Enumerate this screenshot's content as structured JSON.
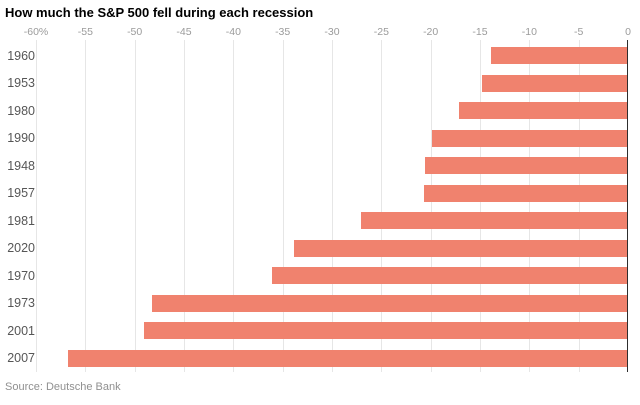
{
  "source": "Source: Deutsche Bank",
  "colors": {
    "bar": "#f0826e",
    "zero_axis": "#2e2e2e",
    "gridline": "#e6e6e6",
    "tick_label": "#9b9b9b",
    "year_label": "#565656",
    "title": "#000000",
    "source_text": "#909090",
    "background": "#ffffff"
  },
  "chart_data": {
    "type": "bar",
    "orientation": "horizontal",
    "title": "How much the S&P 500 fell during each recession",
    "categories": [
      "1960",
      "1953",
      "1980",
      "1990",
      "1948",
      "1957",
      "1981",
      "2020",
      "1970",
      "1973",
      "2001",
      "2007"
    ],
    "values": [
      -13.9,
      -14.8,
      -17.1,
      -19.9,
      -20.6,
      -20.7,
      -27.1,
      -33.9,
      -36.1,
      -48.2,
      -49.1,
      -56.8
    ],
    "unit": "%",
    "xlabel": "",
    "ylabel": "",
    "xlim": [
      -60,
      0
    ],
    "x_ticks": [
      "-60%",
      "-55",
      "-50",
      "-45",
      "-40",
      "-35",
      "-30",
      "-25",
      "-20",
      "-15",
      "-10",
      "-5",
      "0"
    ],
    "grid": true,
    "legend": "none"
  }
}
